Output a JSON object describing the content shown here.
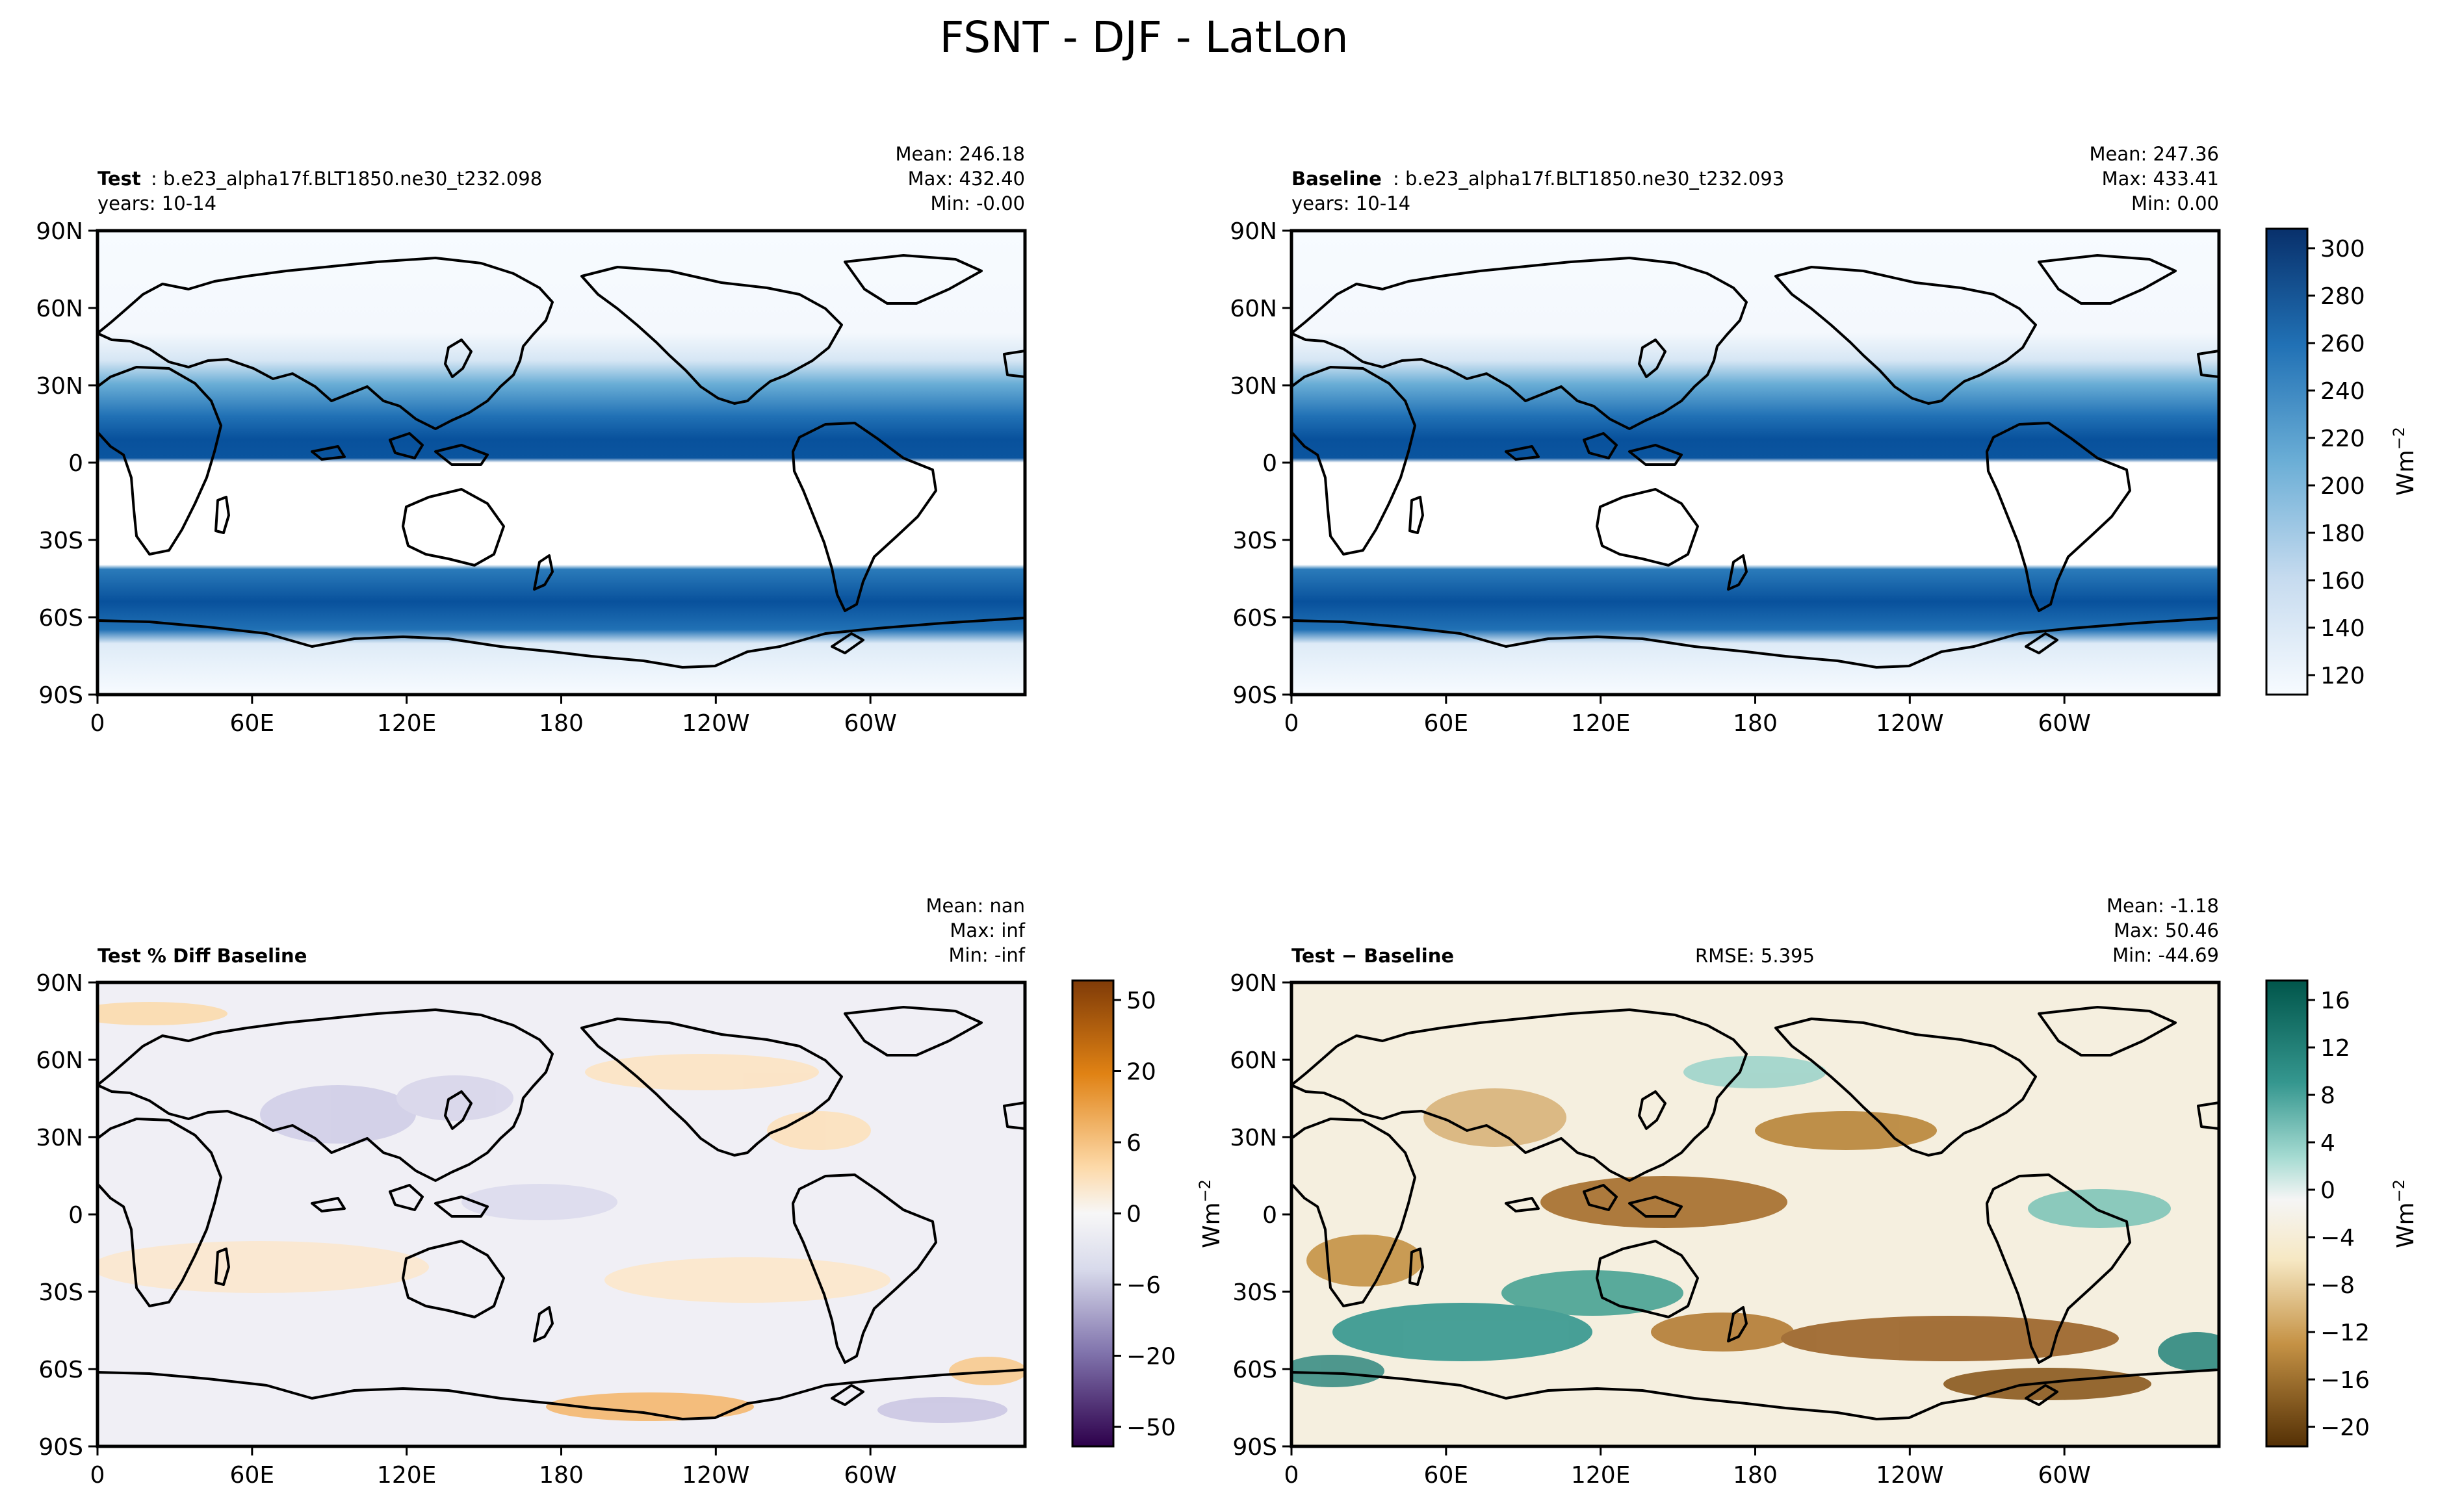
{
  "figure": {
    "title": "FSNT - DJF - LatLon"
  },
  "units": "Wm",
  "units_exp": "−2",
  "rmse_text": "RMSE: 5.395",
  "chart_data": [
    {
      "type": "heatmap",
      "id": "test",
      "label_bold": "Test",
      "label_rest": ": b.e23_alpha17f.BLT1850.ne30_t232.098",
      "years": "years: 10-14",
      "stats": [
        "Mean: 246.18",
        "Max: 432.40",
        "Min: -0.00"
      ],
      "xticks": [
        "0",
        "60E",
        "120E",
        "180",
        "120W",
        "60W"
      ],
      "yticks": [
        "90N",
        "60N",
        "30N",
        "0",
        "30S",
        "60S",
        "90S"
      ],
      "xlim": [
        0,
        360
      ],
      "ylim": [
        -90,
        90
      ],
      "colormap": "Blues",
      "vmin": 120,
      "vmax": 310
    },
    {
      "type": "heatmap",
      "id": "baseline",
      "label_bold": "Baseline",
      "label_rest": ": b.e23_alpha17f.BLT1850.ne30_t232.093",
      "years": "years: 10-14",
      "stats": [
        "Mean: 247.36",
        "Max: 433.41",
        "Min:  0.00"
      ],
      "xticks": [
        "0",
        "60E",
        "120E",
        "180",
        "120W",
        "60W"
      ],
      "yticks": [
        "90N",
        "60N",
        "30N",
        "0",
        "30S",
        "60S",
        "90S"
      ],
      "xlim": [
        0,
        360
      ],
      "ylim": [
        -90,
        90
      ],
      "colormap": "Blues",
      "vmin": 120,
      "vmax": 310,
      "colorbar": {
        "ticks": [
          "300",
          "280",
          "260",
          "240",
          "220",
          "200",
          "180",
          "160",
          "140",
          "120"
        ],
        "label": "Wm−2"
      }
    },
    {
      "type": "heatmap",
      "id": "pctdiff",
      "label_bold": "Test % Diff Baseline",
      "stats": [
        "Mean:   nan",
        "Max:   inf",
        "Min:  -inf"
      ],
      "xticks": [
        "0",
        "60E",
        "120E",
        "180",
        "120W",
        "60W"
      ],
      "yticks": [
        "90N",
        "60N",
        "30N",
        "0",
        "30S",
        "60S",
        "90S"
      ],
      "xlim": [
        0,
        360
      ],
      "ylim": [
        -90,
        90
      ],
      "colormap": "PuOr",
      "colorbar": {
        "ticks": [
          "50",
          "20",
          "6",
          "0",
          "−6",
          "−20",
          "−50"
        ]
      }
    },
    {
      "type": "heatmap",
      "id": "diff",
      "label_bold": "Test − Baseline",
      "stats": [
        "Mean: -1.18",
        "Max: 50.46",
        "Min: -44.69"
      ],
      "xticks": [
        "0",
        "60E",
        "120E",
        "180",
        "120W",
        "60W"
      ],
      "yticks": [
        "90N",
        "60N",
        "30N",
        "0",
        "30S",
        "60S",
        "90S"
      ],
      "xlim": [
        0,
        360
      ],
      "ylim": [
        -90,
        90
      ],
      "colormap": "BrBG",
      "vmin": -20,
      "vmax": 18,
      "colorbar": {
        "ticks": [
          "16",
          "12",
          "8",
          "4",
          "0",
          "−4",
          "−8",
          "−12",
          "−16",
          "−20"
        ],
        "label": "Wm−2"
      }
    }
  ]
}
